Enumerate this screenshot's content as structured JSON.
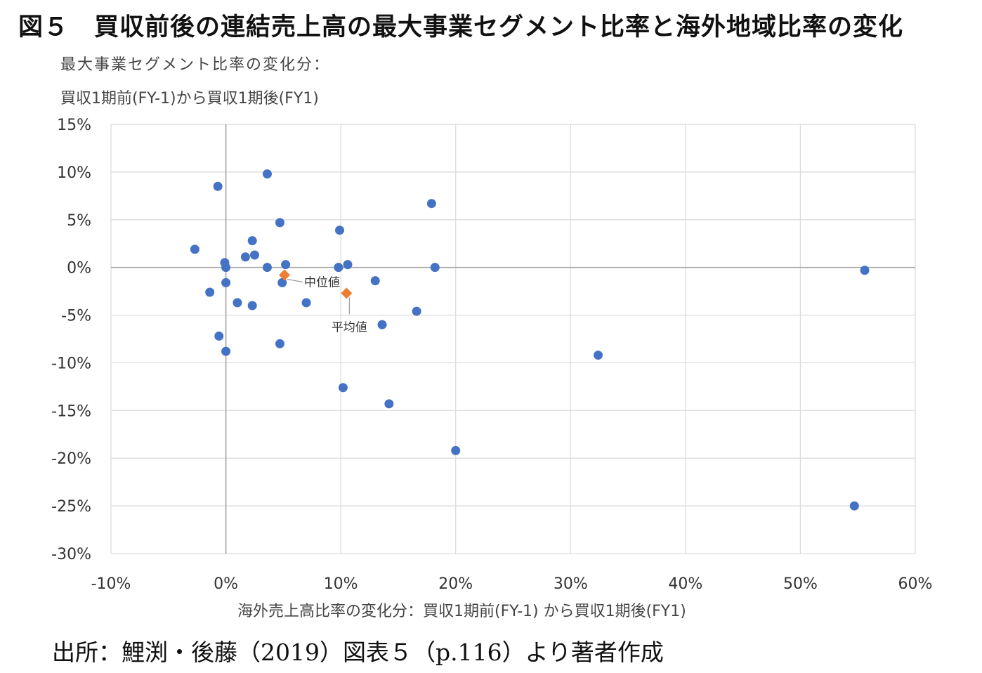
{
  "figure": {
    "title": "図５　買収前後の連結売上高の最大事業セグメント比率と海外地域比率の変化",
    "source": "出所：鯉渕・後藤（2019）図表５（p.116）より著者作成"
  },
  "chart_data": {
    "type": "scatter",
    "title": "",
    "xlabel": "海外売上高比率の変化分：買収1期前(FY-1) から買収1期後(FY1)",
    "ylabel_lines": [
      "最大事業セグメント比率の変化分：",
      "買収1期前(FY-1)から買収1期後(FY1)"
    ],
    "xlim": [
      -0.1,
      0.6
    ],
    "ylim": [
      -0.3,
      0.15
    ],
    "x_ticks": [
      -0.1,
      0.0,
      0.1,
      0.2,
      0.3,
      0.4,
      0.5,
      0.6
    ],
    "x_tick_labels": [
      "-10%",
      "0%",
      "10%",
      "20%",
      "30%",
      "40%",
      "50%",
      "60%"
    ],
    "y_ticks": [
      0.15,
      0.1,
      0.05,
      0.0,
      -0.05,
      -0.1,
      -0.15,
      -0.2,
      -0.25,
      -0.3
    ],
    "y_tick_labels": [
      "15%",
      "10%",
      "5%",
      "0%",
      "-5%",
      "-10%",
      "-15%",
      "-20%",
      "-25%",
      "-30%"
    ],
    "grid": true,
    "colors": {
      "points": "#4472c4",
      "summary": "#ed7d31",
      "grid": "#d9d9d9",
      "axis": "#a6a6a6"
    },
    "points": [
      [
        -0.027,
        0.019
      ],
      [
        -0.007,
        0.085
      ],
      [
        -0.014,
        -0.026
      ],
      [
        -0.006,
        -0.072
      ],
      [
        -0.001,
        0.005
      ],
      [
        0.0,
        0.0
      ],
      [
        0.0,
        -0.016
      ],
      [
        0.0,
        -0.088
      ],
      [
        0.01,
        -0.037
      ],
      [
        0.017,
        0.011
      ],
      [
        0.023,
        0.028
      ],
      [
        0.025,
        0.013
      ],
      [
        0.023,
        -0.04
      ],
      [
        0.036,
        0.098
      ],
      [
        0.036,
        0.0
      ],
      [
        0.047,
        0.047
      ],
      [
        0.049,
        -0.016
      ],
      [
        0.052,
        0.003
      ],
      [
        0.047,
        -0.08
      ],
      [
        0.07,
        -0.037
      ],
      [
        0.099,
        0.039
      ],
      [
        0.098,
        0.0
      ],
      [
        0.106,
        0.003
      ],
      [
        0.102,
        -0.126
      ],
      [
        0.13,
        -0.014
      ],
      [
        0.136,
        -0.06
      ],
      [
        0.142,
        -0.143
      ],
      [
        0.166,
        -0.046
      ],
      [
        0.179,
        0.067
      ],
      [
        0.182,
        0.0
      ],
      [
        0.2,
        -0.192
      ],
      [
        0.324,
        -0.092
      ],
      [
        0.556,
        -0.003
      ],
      [
        0.547,
        -0.25
      ]
    ],
    "summary_points": [
      {
        "label": "中位値",
        "x": 0.051,
        "y": -0.008
      },
      {
        "label": "平均値",
        "x": 0.105,
        "y": -0.027
      }
    ]
  }
}
